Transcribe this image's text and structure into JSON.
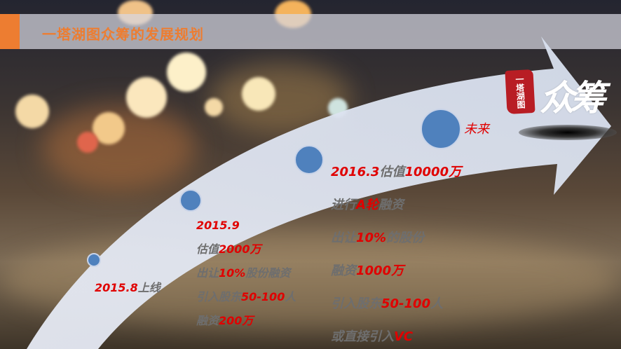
{
  "header": {
    "title": "一塔湖图众筹的发展规划"
  },
  "colors": {
    "accent": "#ed7d31",
    "highlight": "#e00000",
    "node": "#4f81bd",
    "text": "#6e6e6e"
  },
  "logo": {
    "stamp_text": "一塔湖图",
    "brush_text": "众筹"
  },
  "milestones": [
    {
      "date": "2015.8",
      "lines": [
        {
          "parts": [
            {
              "text": "2015.8",
              "style": "red"
            },
            {
              "text": "上线",
              "style": "gray"
            }
          ]
        }
      ]
    },
    {
      "date": "2015.9",
      "lines": [
        {
          "parts": [
            {
              "text": "2015.9",
              "style": "red"
            }
          ]
        },
        {
          "parts": [
            {
              "text": "估值",
              "style": "gray"
            },
            {
              "text": "2000万",
              "style": "red"
            }
          ]
        },
        {
          "parts": [
            {
              "text": "出让",
              "style": "gray"
            },
            {
              "text": "10%",
              "style": "red"
            },
            {
              "text": "股份融资",
              "style": "gray"
            }
          ]
        },
        {
          "parts": [
            {
              "text": "引入股东",
              "style": "gray"
            },
            {
              "text": "50-100",
              "style": "red"
            },
            {
              "text": "人",
              "style": "gray"
            }
          ]
        },
        {
          "parts": [
            {
              "text": "融资",
              "style": "gray"
            },
            {
              "text": "200万",
              "style": "red"
            }
          ]
        }
      ]
    },
    {
      "date": "2016.3",
      "lines": [
        {
          "parts": [
            {
              "text": "2016.3",
              "style": "red"
            },
            {
              "text": "估值",
              "style": "gray"
            },
            {
              "text": "10000万",
              "style": "red"
            }
          ]
        },
        {
          "parts": [
            {
              "text": "进行",
              "style": "gray"
            },
            {
              "text": "A轮",
              "style": "red"
            },
            {
              "text": "融资",
              "style": "gray"
            }
          ]
        },
        {
          "parts": [
            {
              "text": "出让",
              "style": "gray"
            },
            {
              "text": "10%",
              "style": "red"
            },
            {
              "text": "的股份",
              "style": "gray"
            }
          ]
        },
        {
          "parts": [
            {
              "text": "融资",
              "style": "gray"
            },
            {
              "text": "1000万",
              "style": "red"
            }
          ]
        },
        {
          "parts": [
            {
              "text": "引入股东",
              "style": "gray"
            },
            {
              "text": "50-100",
              "style": "red"
            },
            {
              "text": "人",
              "style": "gray"
            }
          ]
        },
        {
          "parts": [
            {
              "text": "或直接引入",
              "style": "gray"
            },
            {
              "text": "VC",
              "style": "red"
            }
          ]
        }
      ]
    },
    {
      "date": "未来",
      "lines": [
        {
          "parts": [
            {
              "text": "未来",
              "style": "red"
            }
          ]
        }
      ]
    }
  ]
}
